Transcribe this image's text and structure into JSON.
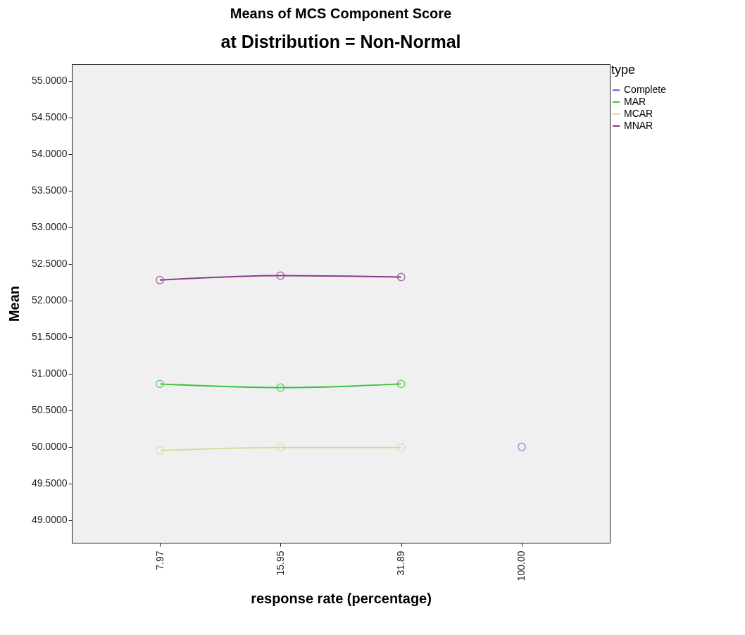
{
  "chart_data": {
    "type": "line",
    "title": "Means of MCS Component Score",
    "subtitle": "at Distribution = Non-Normal",
    "xlabel": "response rate (percentage)",
    "ylabel": "Mean",
    "legend_title": "type",
    "categories": [
      "7.97",
      "15.95",
      "31.89",
      "100.00"
    ],
    "series": [
      {
        "name": "Complete",
        "color": "#5a6fd0",
        "values": [
          null,
          null,
          null,
          50.0
        ]
      },
      {
        "name": "MAR",
        "color": "#3cc13c",
        "values": [
          50.86,
          50.81,
          50.86,
          null
        ]
      },
      {
        "name": "MCAR",
        "color": "#dcd7a0",
        "values": [
          49.95,
          49.99,
          49.99,
          null
        ]
      },
      {
        "name": "MNAR",
        "color": "#8b3a8b",
        "values": [
          52.28,
          52.34,
          52.32,
          null
        ]
      }
    ],
    "ylim": [
      48.69,
      55.23
    ],
    "yticks": [
      {
        "value": 49,
        "label": "49.0000"
      },
      {
        "value": 49.5,
        "label": "49.5000"
      },
      {
        "value": 50,
        "label": "50.0000"
      },
      {
        "value": 50.5,
        "label": "50.5000"
      },
      {
        "value": 51,
        "label": "51.0000"
      },
      {
        "value": 51.5,
        "label": "51.5000"
      },
      {
        "value": 52,
        "label": "52.0000"
      },
      {
        "value": 52.5,
        "label": "52.5000"
      },
      {
        "value": 53,
        "label": "53.0000"
      },
      {
        "value": 53.5,
        "label": "53.5000"
      },
      {
        "value": 54,
        "label": "54.0000"
      },
      {
        "value": 54.5,
        "label": "54.5000"
      },
      {
        "value": 55,
        "label": "55.0000"
      }
    ],
    "grid": false,
    "legend": "right",
    "marker": "circle",
    "line_style": "solid"
  }
}
